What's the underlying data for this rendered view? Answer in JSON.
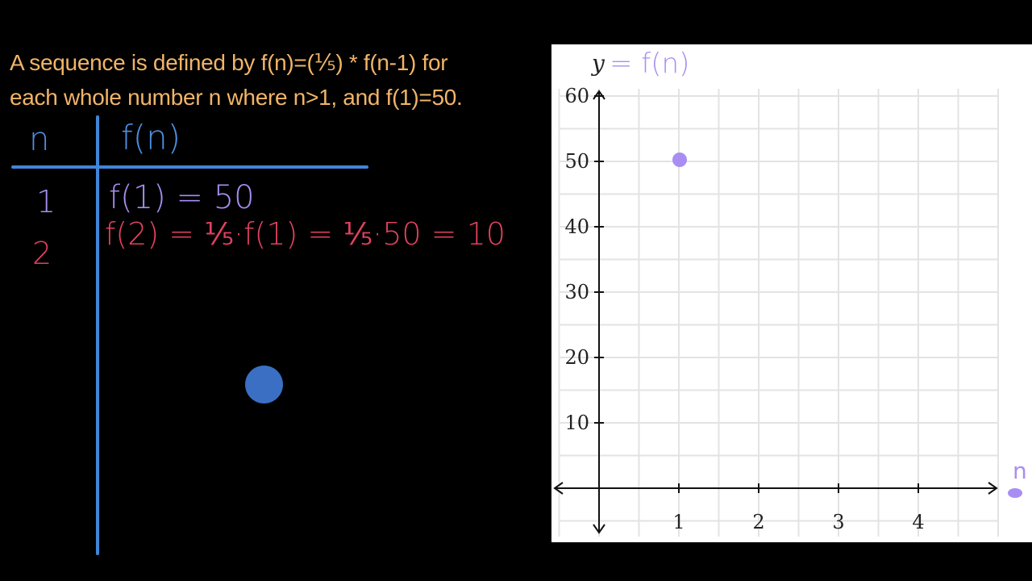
{
  "problem": {
    "line1": "A sequence is defined by f(n)=(⅕) * f(n-1) for",
    "line2": "each whole number n where n>1, and f(1)=50."
  },
  "table": {
    "header_n": "n",
    "header_fn": "f(n)",
    "rows": [
      {
        "n": "1",
        "expr": "f(1) = 50"
      },
      {
        "n": "2",
        "expr": "f(2) = ⅕·f(1) = ⅕·50 = 10"
      }
    ]
  },
  "colors": {
    "table_lines": "#3f86d8",
    "row1": "#a88ef2",
    "row2": "#e2415f",
    "prompt": "#f1b468",
    "point": "#a88ef2"
  },
  "chart_data": {
    "type": "scatter",
    "ylabel_prefix": "y",
    "ylabel_handwritten": "= f(n)",
    "xlabel": "n",
    "x_ticks": [
      "1",
      "2",
      "3",
      "4"
    ],
    "y_ticks": [
      "10",
      "20",
      "30",
      "40",
      "50",
      "60"
    ],
    "xlim": [
      -0.6,
      5
    ],
    "ylim": [
      -6,
      60
    ],
    "grid": true,
    "points": [
      {
        "x": 1,
        "y": 50
      }
    ]
  }
}
